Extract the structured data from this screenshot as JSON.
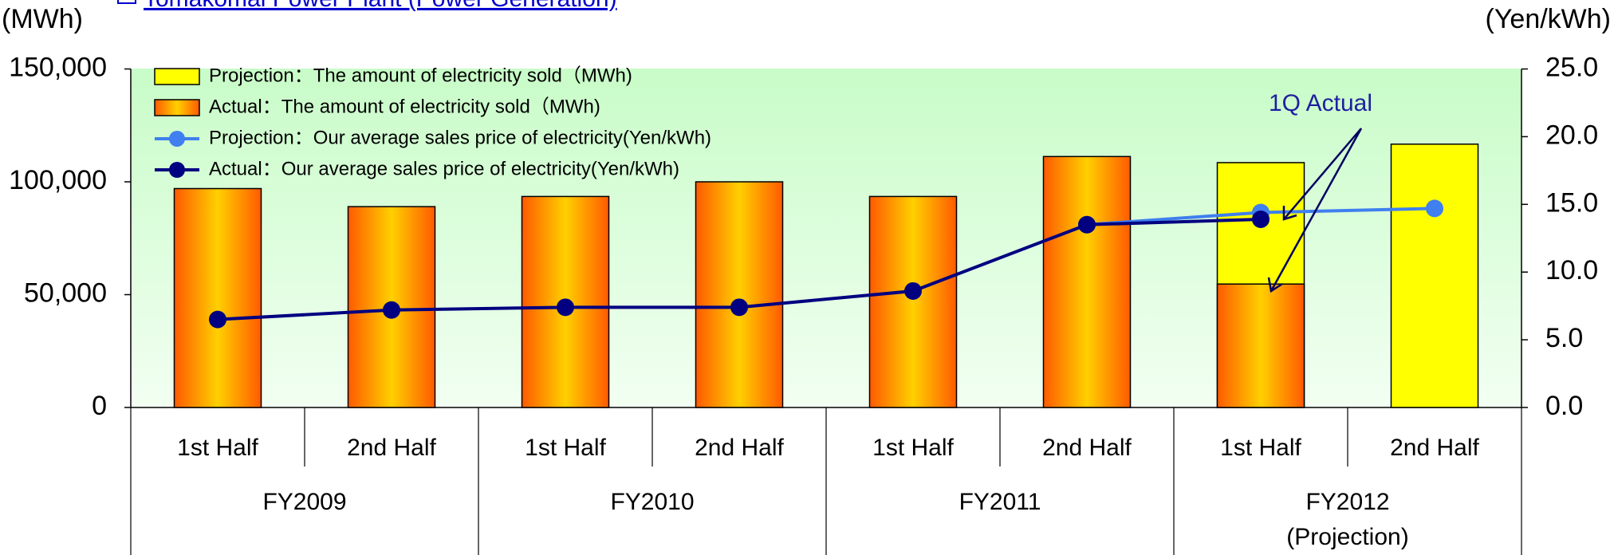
{
  "chart_data": {
    "type": "bar",
    "title": "Tomakomai Power Plant (Power Generation)",
    "y_label": "(MWh)",
    "y2_label": "(Yen/kWh)",
    "categories": [
      "1st Half",
      "2nd Half",
      "1st Half",
      "2nd Half",
      "1st Half",
      "2nd Half",
      "1st Half",
      "2nd Half"
    ],
    "groups": [
      "FY2009",
      "FY2010",
      "FY2011",
      "FY2012"
    ],
    "group_note": "(Projection)",
    "annotation": "1Q Actual",
    "ylim": [
      0,
      150000
    ],
    "yticks": [
      0,
      {
        "value": 50000,
        "label": "50,000"
      },
      {
        "value": 100000,
        "label": "100,000"
      },
      {
        "value": 150000,
        "label": "150,000"
      }
    ],
    "y2lim": [
      0,
      25
    ],
    "y2ticks": [
      {
        "value": 0,
        "label": "0.0"
      },
      {
        "value": 5,
        "label": "5.0"
      },
      {
        "value": 10,
        "label": "10.0"
      },
      {
        "value": 15,
        "label": "15.0"
      },
      {
        "value": 20,
        "label": "20.0"
      },
      {
        "value": 25,
        "label": "25.0"
      }
    ],
    "series": [
      {
        "name": "Projection：The amount of electricity sold（MWh)",
        "type": "bar",
        "color": "#ffff00",
        "values": [
          null,
          null,
          null,
          null,
          null,
          null,
          108500,
          116700
        ]
      },
      {
        "name": "Actual：The amount of electricity sold（MWh)",
        "type": "bar",
        "color": "#ff8000",
        "values": [
          97000,
          89000,
          93500,
          100000,
          93500,
          111200,
          54700,
          null
        ]
      },
      {
        "name": "Projection：Our average sales price of electricity(Yen/kWh)",
        "type": "line",
        "axis": "y2",
        "color": "#3f7fef",
        "values": [
          null,
          null,
          null,
          null,
          null,
          13.5,
          14.4,
          14.7
        ]
      },
      {
        "name": "Actual：Our average sales price of electricity(Yen/kWh)",
        "type": "line",
        "axis": "y2",
        "color": "#000080",
        "values": [
          6.5,
          7.2,
          7.4,
          7.4,
          8.6,
          13.5,
          13.9,
          null
        ]
      }
    ]
  }
}
